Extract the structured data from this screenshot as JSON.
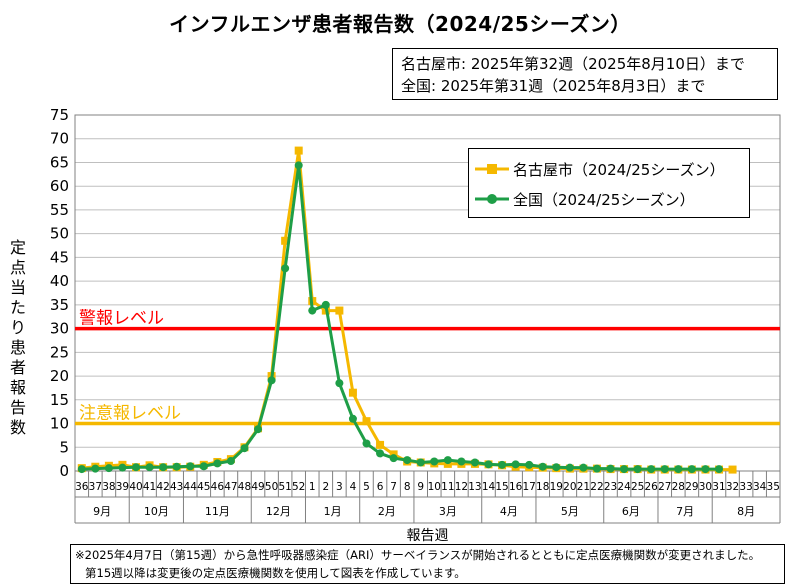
{
  "title": "インフルエンザ患者報告数（2024/25シーズン）",
  "info_lines": [
    "名古屋市: 2025年第32週（2025年8月10日）まで",
    "全国: 2025年第31週（2025年8月3日）まで"
  ],
  "footnote_lines": [
    "※2025年4月7日（第15週）から急性呼吸器感染症（ARI）サーベイランスが開始されるとともに定点医療機関数が変更されました。",
    "第15週以降は変更後の定点医療機関数を使用して図表を作成しています。"
  ],
  "colors": {
    "nagoya": "#F5B800",
    "national": "#1E9E47",
    "warning": "#FF0000",
    "caution": "#F5B800",
    "grid": "#BFBFBF"
  },
  "chart_data": {
    "type": "line",
    "title": "インフルエンザ患者報告数（2024/25シーズン）",
    "xlabel": "報告週",
    "ylabel": "定点当たり患者報告数",
    "ylim": [
      0,
      75
    ],
    "yticks": [
      0,
      5,
      10,
      15,
      20,
      25,
      30,
      35,
      40,
      45,
      50,
      55,
      60,
      65,
      70,
      75
    ],
    "grid": true,
    "legend_position": "top-right",
    "weeks": [
      "36",
      "37",
      "38",
      "39",
      "40",
      "41",
      "42",
      "43",
      "44",
      "45",
      "46",
      "47",
      "48",
      "49",
      "50",
      "51",
      "52",
      "1",
      "2",
      "3",
      "4",
      "5",
      "6",
      "7",
      "8",
      "9",
      "10",
      "11",
      "12",
      "13",
      "14",
      "15",
      "16",
      "17",
      "18",
      "19",
      "20",
      "21",
      "22",
      "23",
      "24",
      "25",
      "26",
      "27",
      "28",
      "29",
      "30",
      "31",
      "32",
      "33",
      "34",
      "35"
    ],
    "months": [
      {
        "label": "9月",
        "from": 0,
        "to": 4
      },
      {
        "label": "10月",
        "from": 4,
        "to": 8
      },
      {
        "label": "11月",
        "from": 8,
        "to": 13
      },
      {
        "label": "12月",
        "from": 13,
        "to": 17
      },
      {
        "label": "1月",
        "from": 17,
        "to": 21
      },
      {
        "label": "2月",
        "from": 21,
        "to": 25
      },
      {
        "label": "3月",
        "from": 25,
        "to": 30
      },
      {
        "label": "4月",
        "from": 30,
        "to": 34
      },
      {
        "label": "5月",
        "from": 34,
        "to": 39
      },
      {
        "label": "6月",
        "from": 39,
        "to": 43
      },
      {
        "label": "7月",
        "from": 43,
        "to": 47
      },
      {
        "label": "8月",
        "from": 47,
        "to": 52
      }
    ],
    "thresholds": [
      {
        "label": "警報レベル",
        "value": 30
      },
      {
        "label": "注意報レベル",
        "value": 10
      }
    ],
    "series": [
      {
        "name": "名古屋市（2024/25シーズン）",
        "marker": "square",
        "values": [
          0.6,
          0.9,
          1.1,
          1.3,
          0.8,
          1.2,
          0.8,
          0.8,
          0.9,
          1.3,
          1.9,
          2.5,
          5.0,
          9.0,
          20.0,
          48.5,
          67.5,
          35.8,
          33.8,
          33.8,
          16.5,
          10.5,
          5.5,
          3.5,
          2.0,
          1.8,
          1.6,
          1.5,
          1.5,
          1.5,
          1.4,
          1.2,
          0.9,
          0.8,
          0.7,
          0.6,
          0.5,
          0.5,
          0.5,
          0.4,
          0.4,
          0.4,
          0.3,
          0.3,
          0.3,
          0.3,
          0.3,
          0.3,
          0.3,
          null,
          null,
          null
        ]
      },
      {
        "name": "全国（2024/25シーズン）",
        "marker": "circle",
        "values": [
          0.4,
          0.5,
          0.6,
          0.7,
          0.8,
          0.8,
          0.8,
          0.9,
          1.0,
          1.0,
          1.6,
          2.1,
          4.8,
          8.8,
          19.1,
          42.7,
          64.4,
          33.8,
          35.0,
          18.5,
          11.0,
          5.8,
          3.7,
          2.7,
          2.3,
          1.8,
          2.0,
          2.3,
          2.0,
          1.8,
          1.4,
          1.3,
          1.4,
          1.3,
          0.9,
          0.8,
          0.7,
          0.7,
          0.5,
          0.5,
          0.4,
          0.4,
          0.4,
          0.4,
          0.4,
          0.4,
          0.4,
          0.4,
          null,
          null,
          null,
          null
        ]
      }
    ]
  }
}
